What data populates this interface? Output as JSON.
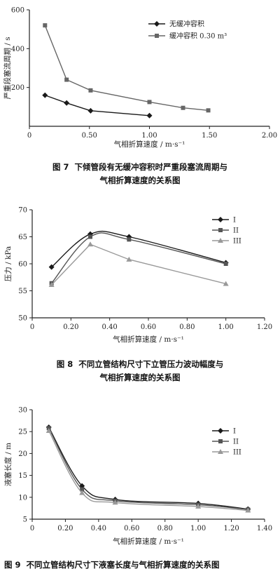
{
  "chart_data": [
    {
      "type": "line",
      "figure_label": "图 7",
      "caption_lines": [
        "下倾管段有无缓冲容积时严重段塞流周期与",
        "气相折算速度的关系图"
      ],
      "xlabel": "气相折算速度 / m·s⁻¹",
      "ylabel": "严重段塞流周期 / s",
      "xlim": [
        0,
        2.0
      ],
      "ylim": [
        0,
        600
      ],
      "xticks": [
        0,
        0.5,
        1.0,
        1.5,
        2.0
      ],
      "xtick_labels": [
        "0",
        "0.50",
        "1.00",
        "1.50",
        "2.00"
      ],
      "yticks": [
        200,
        400,
        600
      ],
      "ytick_labels": [
        "200",
        "400",
        "600"
      ],
      "legend_position": "top-right",
      "series": [
        {
          "name": "无缓冲容积",
          "marker": "diamond",
          "color": "#1a1a1a",
          "smooth": false,
          "x": [
            0.13,
            0.31,
            0.51,
            1.0
          ],
          "y": [
            160,
            120,
            80,
            55
          ]
        },
        {
          "name": "缓冲容积 0.30 m³",
          "marker": "square",
          "color": "#666666",
          "smooth": false,
          "x": [
            0.13,
            0.31,
            0.51,
            1.0,
            1.28,
            1.49
          ],
          "y": [
            520,
            240,
            185,
            125,
            95,
            82
          ]
        }
      ]
    },
    {
      "type": "line",
      "figure_label": "图 8",
      "caption_lines": [
        "不同立管结构尺寸下立管压力波动幅度与",
        "气相折算速度的关系图"
      ],
      "xlabel": "气相折算速度 / m·s⁻¹",
      "ylabel": "压力 / kPa",
      "xlim": [
        0,
        1.2
      ],
      "ylim": [
        50,
        70
      ],
      "xticks": [
        0,
        0.2,
        0.4,
        0.6,
        0.8,
        1.0,
        1.2
      ],
      "xtick_labels": [
        "0",
        "0.20",
        "0.40",
        "0.60",
        "0.80",
        "1.00",
        "1.20"
      ],
      "yticks": [
        50,
        55,
        60,
        65,
        70
      ],
      "ytick_labels": [
        "50",
        "55",
        "60",
        "65",
        "70"
      ],
      "legend_position": "top-right",
      "series": [
        {
          "name": "I",
          "marker": "diamond",
          "color": "#1a1a1a",
          "smooth": true,
          "x": [
            0.1,
            0.3,
            0.5,
            1.0
          ],
          "y": [
            59.4,
            65.5,
            65.0,
            60.2
          ]
        },
        {
          "name": "II",
          "marker": "square",
          "color": "#555555",
          "smooth": true,
          "x": [
            0.1,
            0.3,
            0.5,
            1.0
          ],
          "y": [
            56.4,
            65.0,
            64.5,
            60.0
          ]
        },
        {
          "name": "III",
          "marker": "triangle",
          "color": "#999999",
          "smooth": false,
          "x": [
            0.1,
            0.3,
            0.5,
            1.0
          ],
          "y": [
            56.1,
            63.6,
            60.8,
            56.3
          ]
        }
      ]
    },
    {
      "type": "line",
      "figure_label": "图 9",
      "caption_lines": [
        "不同立管结构尺寸下液塞长度与气相折算速度的关系图"
      ],
      "xlabel": "气相折算速度 / m·s⁻¹",
      "ylabel": "液塞长度 / m",
      "xlim": [
        0,
        1.4
      ],
      "ylim": [
        5,
        30
      ],
      "xticks": [
        0,
        0.2,
        0.4,
        0.6,
        0.8,
        1.0,
        1.2,
        1.4
      ],
      "xtick_labels": [
        "0",
        "0.20",
        "0.40",
        "0.60",
        "0.80",
        "1.00",
        "1.20",
        "1.40"
      ],
      "yticks": [
        5,
        10,
        15,
        20,
        25,
        30
      ],
      "ytick_labels": [
        "5",
        "10",
        "15",
        "20",
        "25",
        "30"
      ],
      "legend_position": "top-right",
      "series": [
        {
          "name": "I",
          "marker": "diamond",
          "color": "#1a1a1a",
          "smooth": true,
          "x": [
            0.1,
            0.3,
            0.5,
            1.0,
            1.3
          ],
          "y": [
            26.0,
            12.6,
            9.5,
            8.6,
            7.3
          ]
        },
        {
          "name": "II",
          "marker": "square",
          "color": "#555555",
          "smooth": true,
          "x": [
            0.1,
            0.3,
            0.5,
            1.0,
            1.3
          ],
          "y": [
            25.8,
            11.8,
            9.2,
            8.3,
            7.2
          ]
        },
        {
          "name": "III",
          "marker": "triangle",
          "color": "#999999",
          "smooth": true,
          "x": [
            0.1,
            0.3,
            0.5,
            1.0,
            1.3
          ],
          "y": [
            25.2,
            11.0,
            8.8,
            7.9,
            7.0
          ]
        }
      ]
    }
  ]
}
